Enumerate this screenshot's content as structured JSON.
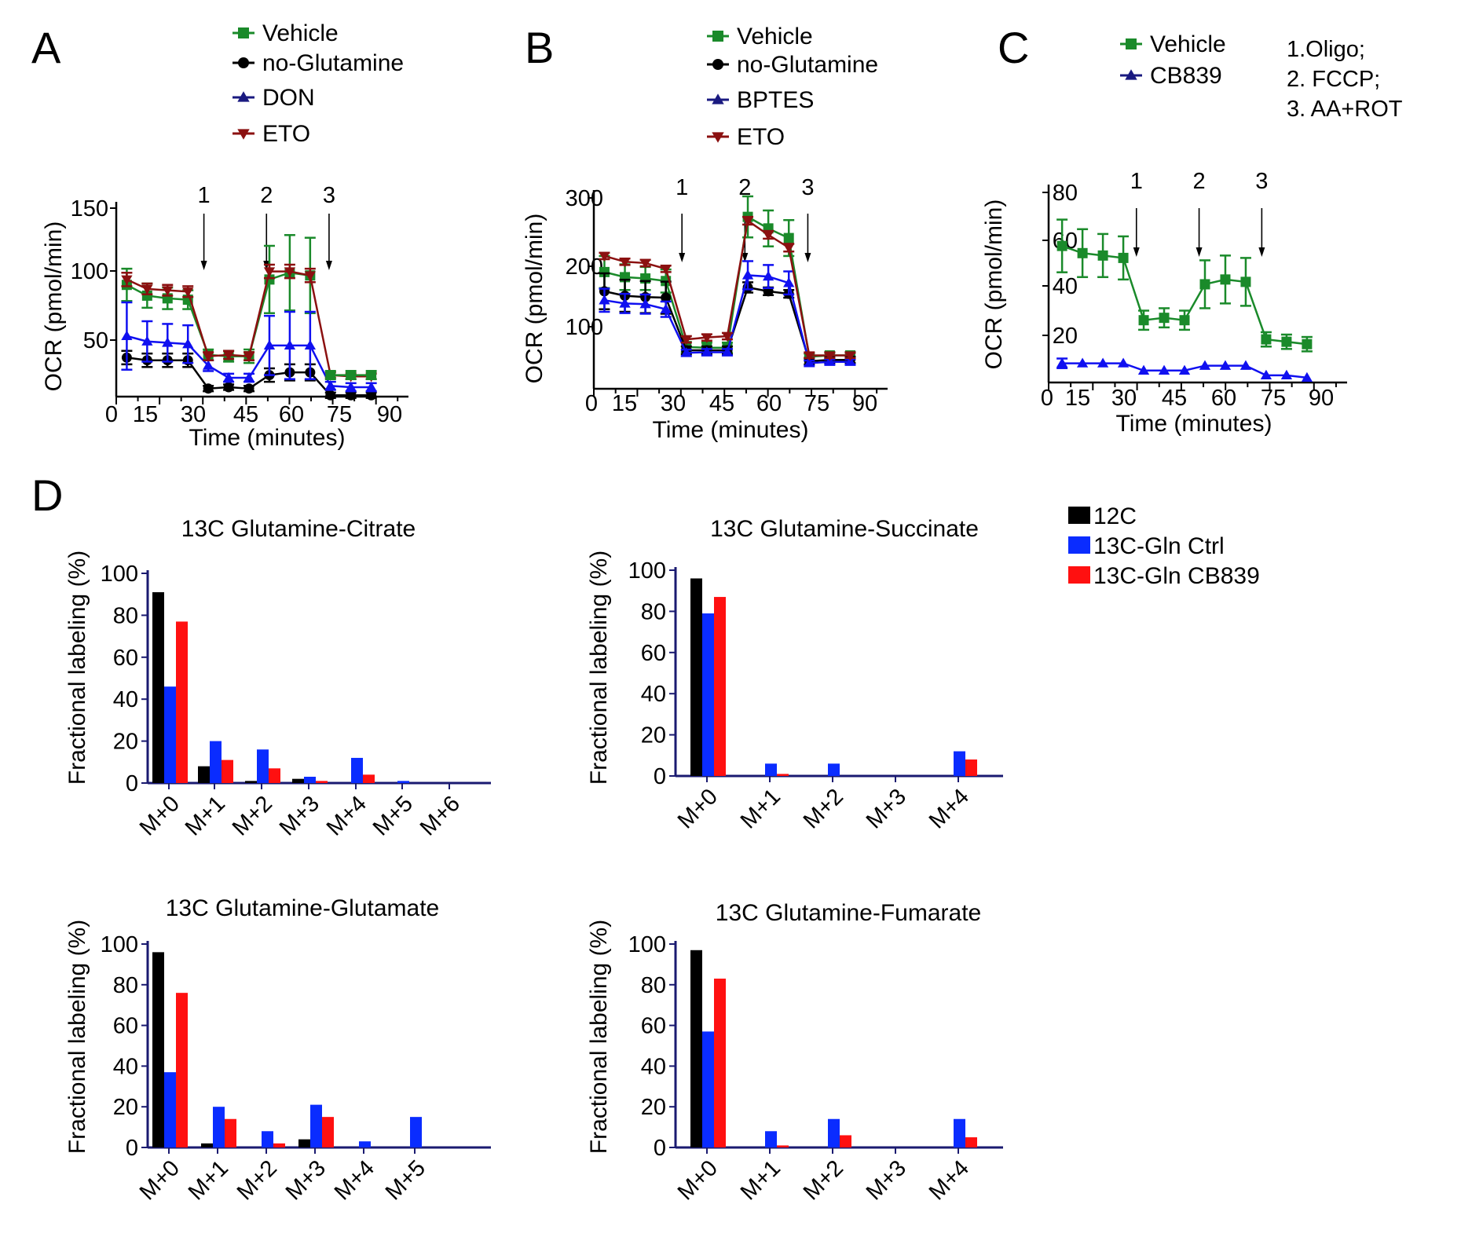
{
  "colors": {
    "vehicle": "#1a8a2a",
    "noglutamine": "#000000",
    "don": "#1010f0",
    "eto": "#8b1010",
    "legend_tri": "#1a1a80",
    "c12": "#000000",
    "gln_ctrl": "#0a2cff",
    "gln_cb839": "#ff1010"
  },
  "chart_data": [
    {
      "id": "A",
      "type": "line",
      "panel_label": "A",
      "xlabel": "Time (minutes)",
      "ylabel": "OCR (pmol/min)",
      "xlim": [
        0,
        95
      ],
      "ylim": [
        10,
        150
      ],
      "xticks": [
        "0",
        "15",
        "30",
        "45",
        "60",
        "75",
        "90"
      ],
      "yticks": [
        "50",
        "100",
        "150"
      ],
      "injections": [
        {
          "label": "1",
          "x": 28.5
        },
        {
          "label": "2",
          "x": 50
        },
        {
          "label": "3",
          "x": 71.5
        }
      ],
      "series": [
        {
          "name": "Vehicle",
          "marker": "square",
          "color": "#1a8a2a",
          "x": [
            2,
            9,
            16,
            23,
            30,
            37,
            44,
            51,
            58,
            65
          ],
          "y": [
            93,
            85,
            83,
            82,
            41,
            40,
            40,
            97,
            102,
            100
          ],
          "err": [
            12,
            9,
            8,
            7,
            4,
            4,
            5,
            25,
            28,
            28
          ]
        },
        {
          "name": "no-Glutamine",
          "marker": "circle",
          "color": "#000000",
          "x": [
            2,
            9,
            16,
            23,
            30,
            37,
            44,
            51,
            58,
            65,
            72,
            79,
            86
          ],
          "y": [
            39,
            37,
            37,
            37,
            16,
            17,
            16,
            26,
            28,
            28,
            11,
            11,
            11
          ],
          "err": [
            5,
            5,
            5,
            5,
            2,
            2,
            2,
            5,
            6,
            6,
            2,
            2,
            2
          ]
        },
        {
          "name": "DON",
          "marker": "triangle-up",
          "color": "#1010f0",
          "x": [
            2,
            9,
            16,
            23,
            30,
            37,
            44,
            51,
            58,
            65,
            72,
            79,
            86
          ],
          "y": [
            55,
            51,
            50,
            49,
            33,
            24,
            24,
            48,
            48,
            48,
            18,
            17,
            17
          ],
          "err": [
            25,
            15,
            14,
            14,
            4,
            3,
            3,
            22,
            25,
            25,
            3,
            3,
            3
          ]
        },
        {
          "name": "ETO",
          "marker": "triangle-down",
          "color": "#8b1010",
          "x": [
            2,
            9,
            16,
            23,
            30,
            37,
            44,
            51,
            58,
            65,
            72,
            79,
            86
          ],
          "y": [
            97,
            90,
            89,
            88,
            40,
            41,
            40,
            103,
            103,
            100,
            26,
            25,
            25
          ],
          "err": [
            5,
            4,
            4,
            4,
            3,
            3,
            3,
            5,
            5,
            5,
            2,
            2,
            2
          ]
        },
        {
          "name": "Vehicle",
          "marker": "square",
          "color": "#1a8a2a",
          "x": [
            72,
            79,
            86
          ],
          "y": [
            26,
            26,
            26
          ],
          "err": [
            3,
            3,
            3
          ]
        }
      ]
    },
    {
      "id": "B",
      "type": "line",
      "panel_label": "B",
      "xlabel": "Time (minutes)",
      "ylabel": "OCR (pmol/min)",
      "xlim": [
        0,
        95
      ],
      "ylim": [
        0,
        300
      ],
      "xticks": [
        "0",
        "15",
        "30",
        "45",
        "60",
        "75",
        "90"
      ],
      "yticks": [
        "100",
        "200",
        "300"
      ],
      "injections": [
        {
          "label": "1",
          "x": 28.5
        },
        {
          "label": "2",
          "x": 50
        },
        {
          "label": "3",
          "x": 71.5
        }
      ],
      "series": [
        {
          "name": "Vehicle",
          "marker": "square",
          "color": "#1a8a2a",
          "x": [
            2,
            9,
            16,
            23,
            30,
            37,
            44,
            51,
            58,
            65,
            72,
            79,
            86
          ],
          "y": [
            182,
            174,
            172,
            168,
            65,
            64,
            64,
            268,
            250,
            235,
            50,
            52,
            52
          ],
          "err": [
            25,
            20,
            18,
            18,
            8,
            8,
            8,
            32,
            28,
            28,
            5,
            5,
            5
          ]
        },
        {
          "name": "no-Glutamine",
          "marker": "circle",
          "color": "#000000",
          "x": [
            2,
            9,
            16,
            23,
            30,
            37,
            44,
            51,
            58,
            65,
            72,
            79,
            86
          ],
          "y": [
            152,
            145,
            143,
            142,
            60,
            60,
            60,
            158,
            152,
            148,
            43,
            45,
            45
          ],
          "err": [
            28,
            25,
            25,
            25,
            6,
            6,
            6,
            8,
            6,
            6,
            5,
            5,
            5
          ]
        },
        {
          "name": "BPTES",
          "marker": "triangle-up",
          "color": "#1010f0",
          "x": [
            2,
            9,
            16,
            23,
            30,
            37,
            44,
            51,
            58,
            65,
            72,
            79,
            86
          ],
          "y": [
            138,
            133,
            132,
            124,
            56,
            57,
            57,
            177,
            175,
            165,
            40,
            42,
            42
          ],
          "err": [
            18,
            15,
            15,
            12,
            5,
            5,
            5,
            22,
            18,
            18,
            4,
            4,
            4
          ]
        },
        {
          "name": "ETO",
          "marker": "triangle-down",
          "color": "#8b1010",
          "x": [
            2,
            9,
            16,
            23,
            30,
            37,
            44,
            51,
            58,
            65,
            72,
            79,
            86
          ],
          "y": [
            207,
            198,
            196,
            187,
            77,
            80,
            82,
            262,
            240,
            220,
            52,
            52,
            52
          ],
          "err": [
            5,
            5,
            5,
            5,
            5,
            5,
            5,
            6,
            6,
            6,
            4,
            4,
            4
          ]
        }
      ]
    },
    {
      "id": "C",
      "type": "line",
      "panel_label": "C",
      "xlabel": "Time (minutes)",
      "ylabel": "OCR (pmol/min)",
      "xlim": [
        0,
        97
      ],
      "ylim": [
        0,
        80
      ],
      "xticks": [
        "0",
        "15",
        "30",
        "45",
        "60",
        "75",
        "90"
      ],
      "yticks": [
        "20",
        "40",
        "60",
        "80"
      ],
      "injections": [
        {
          "label": "1",
          "x": 28.5
        },
        {
          "label": "2",
          "x": 50
        },
        {
          "label": "3",
          "x": 71.5
        }
      ],
      "notes": [
        "1.Oligo;",
        "2. FCCP;",
        "3. AA+ROT"
      ],
      "series": [
        {
          "name": "Vehicle",
          "marker": "square",
          "color": "#1a8a2a",
          "x": [
            3,
            10,
            17,
            24,
            31,
            38,
            45,
            52,
            59,
            66,
            73,
            80,
            87
          ],
          "y": [
            57,
            54,
            53,
            52,
            26,
            27,
            26,
            41,
            43,
            42,
            18,
            17,
            16
          ],
          "err": [
            11,
            10,
            9,
            9,
            4,
            4,
            4,
            10,
            10,
            10,
            3,
            3,
            3
          ]
        },
        {
          "name": "CB839",
          "marker": "triangle-up",
          "color": "#1010f0",
          "x": [
            3,
            10,
            17,
            24,
            31,
            38,
            45,
            52,
            59,
            66,
            73,
            80,
            87
          ],
          "y": [
            8,
            8,
            8,
            8,
            5,
            5,
            5,
            7,
            7,
            7,
            3,
            3,
            2
          ],
          "err": [
            2,
            0,
            0,
            0,
            0,
            0,
            0,
            0,
            0,
            0,
            0,
            0,
            0
          ]
        }
      ]
    },
    {
      "id": "D1",
      "type": "bar",
      "panel_label": "D",
      "title": "13C Glutamine-Citrate",
      "ylabel": "Fractional labeling (%)",
      "ylim": [
        0,
        100
      ],
      "yticks": [
        "0",
        "20",
        "40",
        "60",
        "80",
        "100"
      ],
      "categories": [
        "M+0",
        "M+1",
        "M+2",
        "M+3",
        "M+4",
        "M+5",
        "M+6"
      ],
      "series": [
        {
          "name": "12C",
          "color": "#000000",
          "values": [
            91,
            8,
            1,
            2,
            0,
            0,
            0
          ]
        },
        {
          "name": "13C-Gln Ctrl",
          "color": "#0a2cff",
          "values": [
            46,
            20,
            16,
            3,
            12,
            1,
            0
          ]
        },
        {
          "name": "13C-Gln CB839",
          "color": "#ff1010",
          "values": [
            77,
            11,
            7,
            1,
            4,
            0,
            0
          ]
        }
      ]
    },
    {
      "id": "D2",
      "type": "bar",
      "title": "13C Glutamine-Succinate",
      "ylabel": "Fractional labeling (%)",
      "ylim": [
        0,
        100
      ],
      "yticks": [
        "0",
        "20",
        "40",
        "60",
        "80",
        "100"
      ],
      "categories": [
        "M+0",
        "M+1",
        "M+2",
        "M+3",
        "M+4"
      ],
      "series": [
        {
          "name": "12C",
          "color": "#000000",
          "values": [
            96,
            0,
            0,
            0,
            0
          ]
        },
        {
          "name": "13C-Gln Ctrl",
          "color": "#0a2cff",
          "values": [
            79,
            6,
            6,
            0,
            12
          ]
        },
        {
          "name": "13C-Gln CB839",
          "color": "#ff1010",
          "values": [
            87,
            1,
            0,
            0,
            8
          ]
        }
      ]
    },
    {
      "id": "D3",
      "type": "bar",
      "title": "13C Glutamine-Glutamate",
      "ylabel": "Fractional labeling (%)",
      "ylim": [
        0,
        100
      ],
      "yticks": [
        "0",
        "20",
        "40",
        "60",
        "80",
        "100"
      ],
      "categories": [
        "M+0",
        "M+1",
        "M+2",
        "M+3",
        "M+4",
        "M+5"
      ],
      "series": [
        {
          "name": "12C",
          "color": "#000000",
          "values": [
            96,
            2,
            0,
            4,
            0,
            0
          ]
        },
        {
          "name": "13C-Gln Ctrl",
          "color": "#0a2cff",
          "values": [
            37,
            20,
            8,
            21,
            3,
            15
          ]
        },
        {
          "name": "13C-Gln CB839",
          "color": "#ff1010",
          "values": [
            76,
            14,
            2,
            15,
            0,
            0
          ]
        }
      ]
    },
    {
      "id": "D4",
      "type": "bar",
      "title": "13C Glutamine-Fumarate",
      "ylabel": "Fractional labeling (%)",
      "ylim": [
        0,
        100
      ],
      "yticks": [
        "0",
        "20",
        "40",
        "60",
        "80",
        "100"
      ],
      "categories": [
        "M+0",
        "M+1",
        "M+2",
        "M+3",
        "M+4"
      ],
      "series": [
        {
          "name": "12C",
          "color": "#000000",
          "values": [
            97,
            0,
            0,
            0,
            0
          ]
        },
        {
          "name": "13C-Gln Ctrl",
          "color": "#0a2cff",
          "values": [
            57,
            8,
            14,
            0,
            14
          ]
        },
        {
          "name": "13C-Gln CB839",
          "color": "#ff1010",
          "values": [
            83,
            1,
            6,
            0,
            5
          ]
        }
      ]
    }
  ],
  "legends": {
    "A": [
      {
        "label": "Vehicle",
        "marker": "square",
        "color": "#1a8a2a"
      },
      {
        "label": "no-Glutamine",
        "marker": "circle",
        "color": "#000000"
      },
      {
        "label": "DON",
        "marker": "triangle-up",
        "color": "#1a1a80"
      },
      {
        "label": "ETO",
        "marker": "triangle-down",
        "color": "#8b1010"
      }
    ],
    "B": [
      {
        "label": "Vehicle",
        "marker": "square",
        "color": "#1a8a2a"
      },
      {
        "label": "no-Glutamine",
        "marker": "circle",
        "color": "#000000"
      },
      {
        "label": "BPTES",
        "marker": "triangle-up",
        "color": "#1a1a80"
      },
      {
        "label": "ETO",
        "marker": "triangle-down",
        "color": "#8b1010"
      }
    ],
    "C": [
      {
        "label": "Vehicle",
        "marker": "square",
        "color": "#1a8a2a"
      },
      {
        "label": "CB839",
        "marker": "triangle-up",
        "color": "#1a1a80"
      }
    ],
    "D": [
      {
        "label": "12C",
        "color": "#000000"
      },
      {
        "label": "13C-Gln Ctrl",
        "color": "#0a2cff"
      },
      {
        "label": "13C-Gln CB839",
        "color": "#ff1010"
      }
    ]
  }
}
